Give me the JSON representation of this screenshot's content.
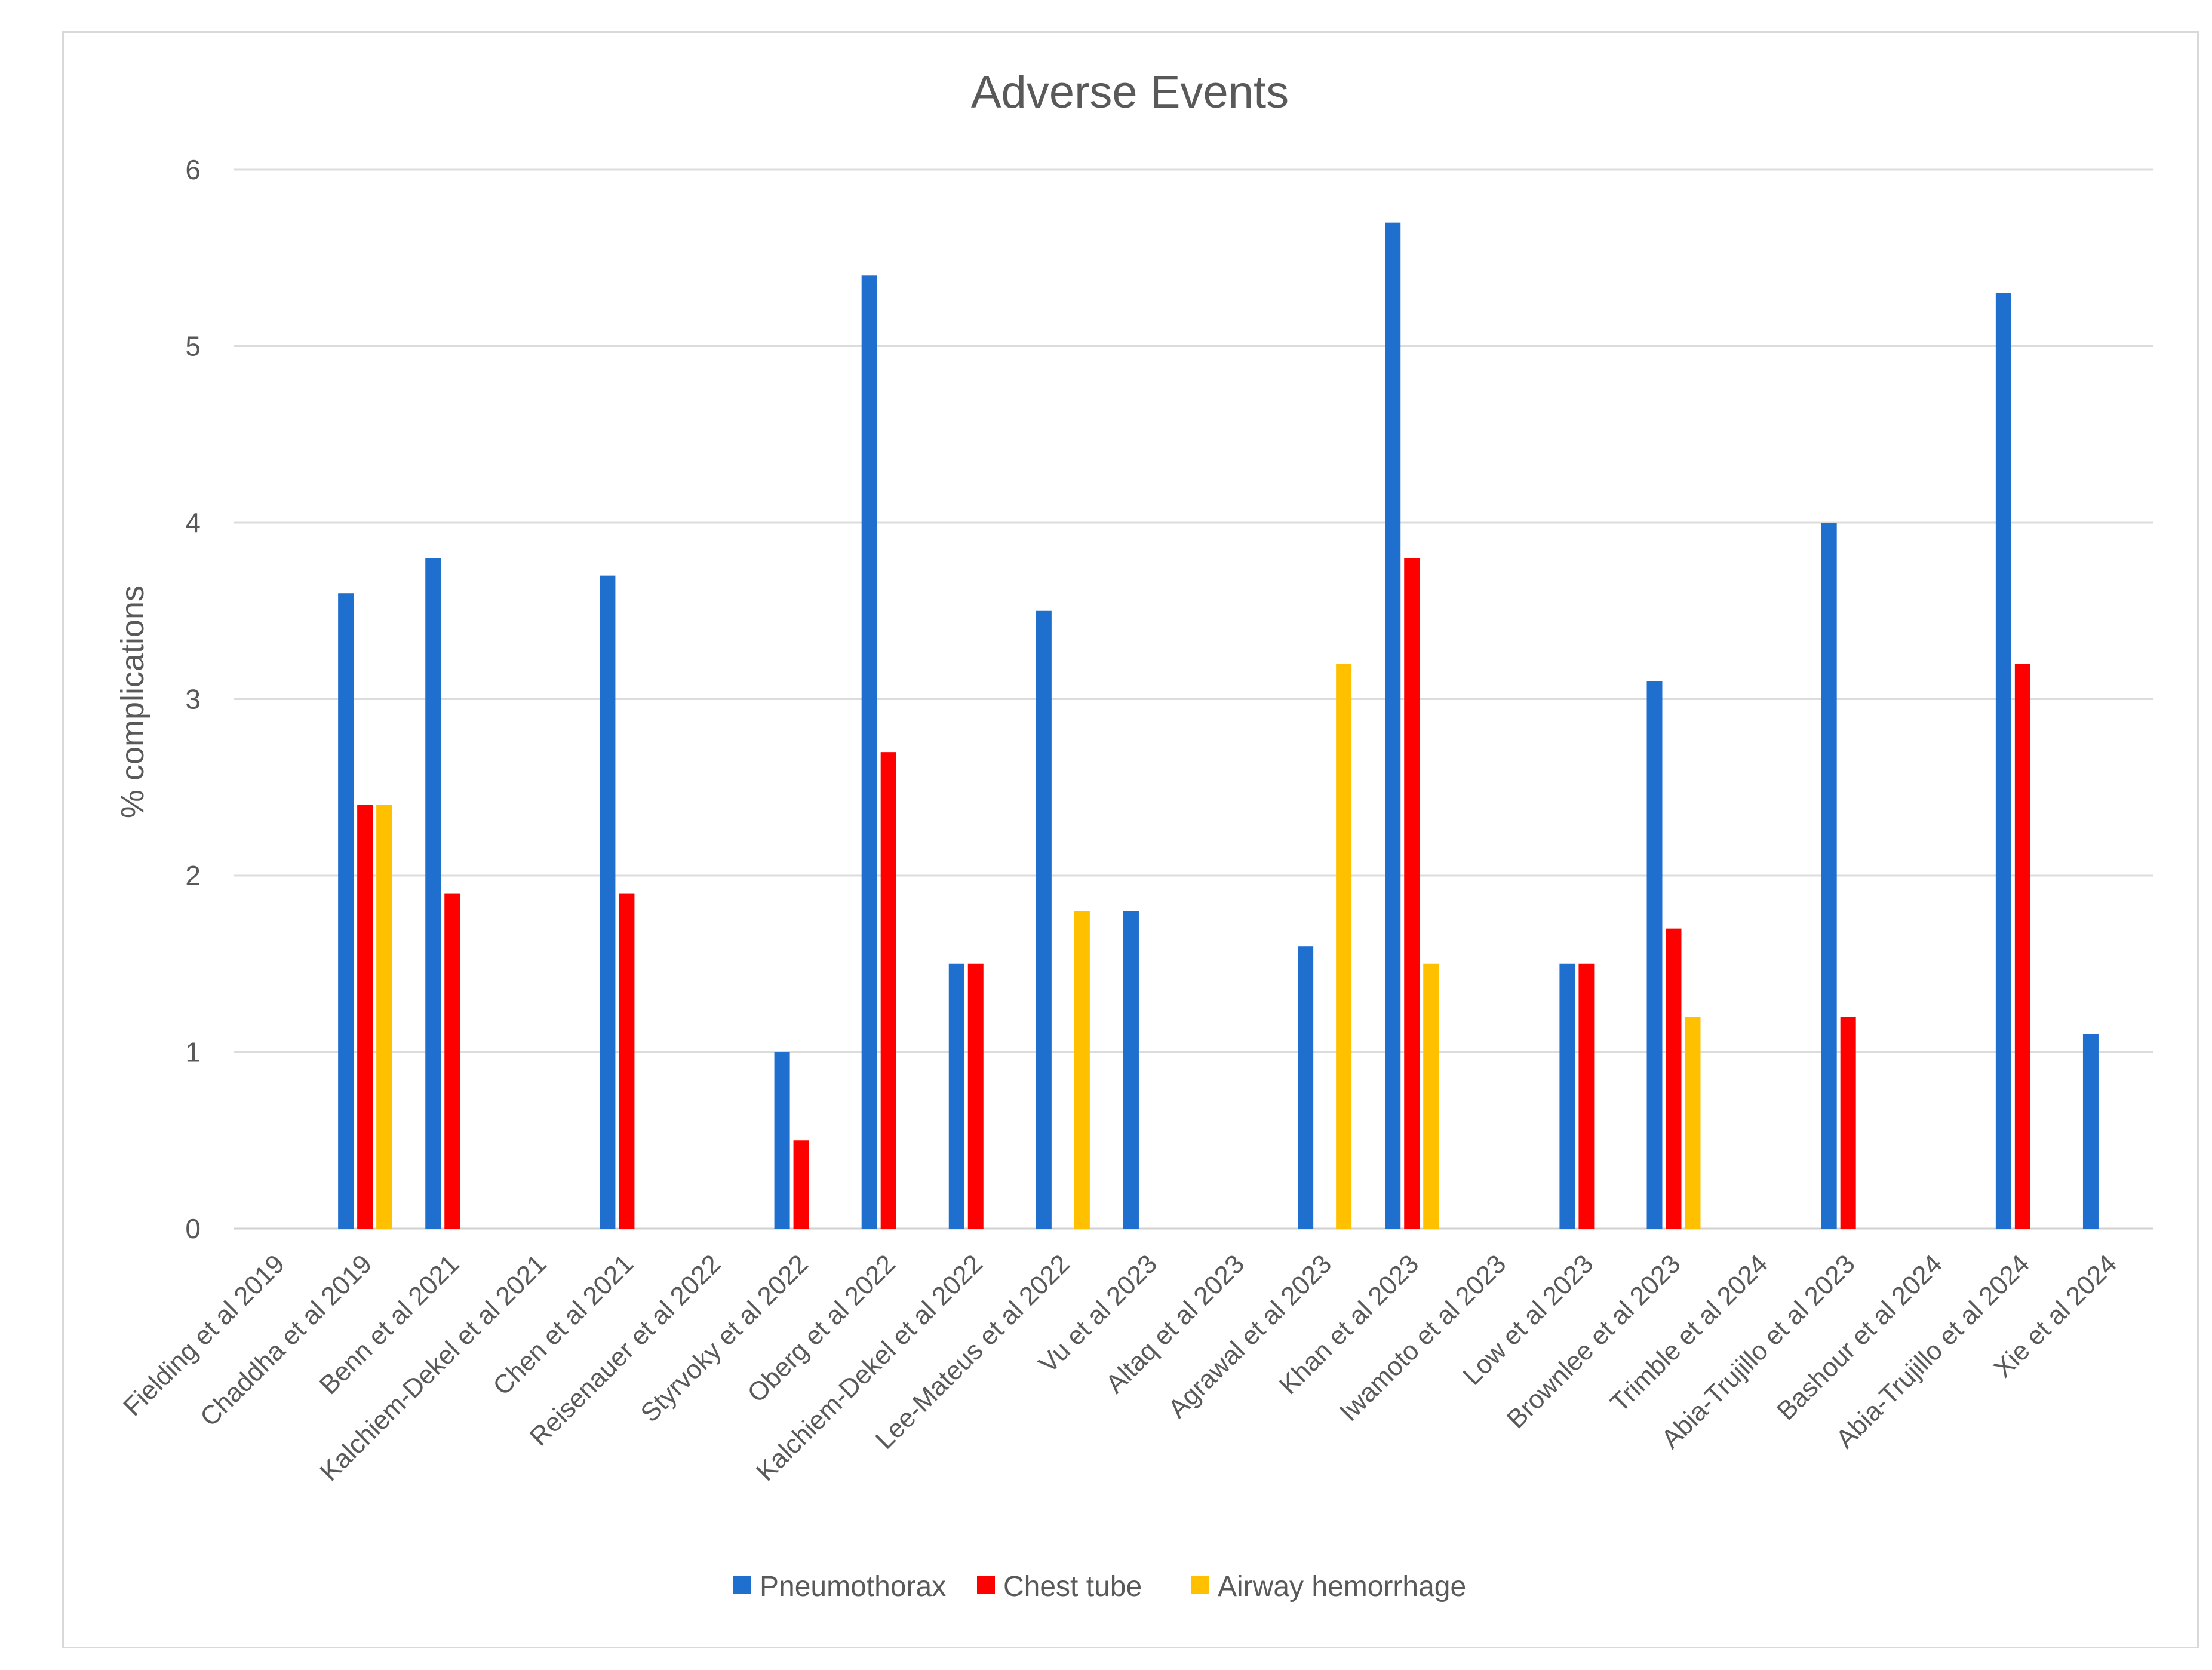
{
  "chart_data": {
    "type": "bar",
    "title": "Adverse Events",
    "xlabel": "",
    "ylabel": "% complications",
    "ylim": [
      0,
      6
    ],
    "yticks": [
      "0",
      "1",
      "2",
      "3",
      "4",
      "5",
      "6"
    ],
    "grid": true,
    "legend_position": "bottom",
    "categories": [
      "Fielding et al 2019",
      "Chaddha et al 2019",
      "Benn et al 2021",
      "Kalchiem-Dekel et al 2021",
      "Chen et al 2021",
      "Reisenauer et al 2022",
      "Styrvoky et al 2022",
      "Oberg et al 2022",
      "Kalchiem-Dekel et al 2022",
      "Lee-Mateus et al 2022",
      "Vu et al 2023",
      "Altaq et al 2023",
      "Agrawal et al 2023",
      "Khan et al 2023",
      "Iwamoto et al 2023",
      "Low et al 2023",
      "Brownlee et al 2023",
      "Trimble et al 2024",
      "Abia-Trujillo et al 2023",
      "Bashour et al 2024",
      "Abia-Trujillo et al 2024",
      "Xie et al 2024"
    ],
    "series": [
      {
        "name": "Pneumothorax",
        "color": "#1f6fcf",
        "values": [
          0,
          3.6,
          3.8,
          0,
          3.7,
          0,
          1.0,
          5.4,
          1.5,
          3.5,
          1.8,
          0,
          1.6,
          5.7,
          0,
          1.5,
          3.1,
          0,
          4.0,
          0,
          5.3,
          1.1
        ]
      },
      {
        "name": "Chest tube",
        "color": "#ff0000",
        "values": [
          0,
          2.4,
          1.9,
          0,
          1.9,
          0,
          0.5,
          2.7,
          1.5,
          0,
          0,
          0,
          0,
          3.8,
          0,
          1.5,
          1.7,
          0,
          1.2,
          0,
          3.2,
          0
        ]
      },
      {
        "name": "Airway hemorrhage",
        "color": "#ffc000",
        "values": [
          0,
          2.4,
          0,
          0,
          0,
          0,
          0,
          0,
          0,
          1.8,
          0,
          0,
          3.2,
          1.5,
          0,
          0,
          1.2,
          0,
          0,
          0,
          0,
          0
        ]
      }
    ]
  }
}
